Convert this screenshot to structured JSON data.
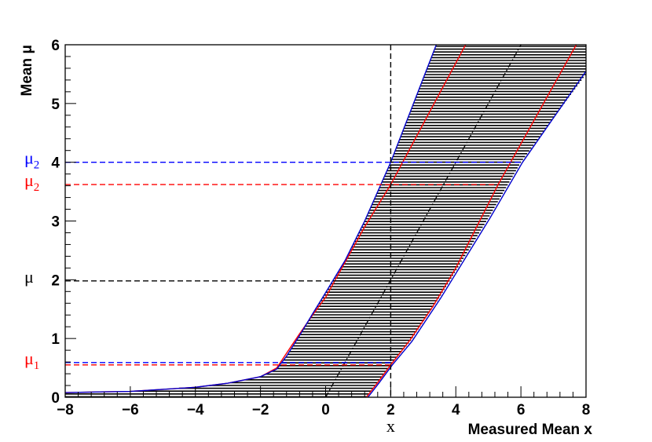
{
  "chart_data": {
    "type": "line",
    "title": "",
    "xlabel": "Measured Mean x",
    "ylabel": "Mean μ",
    "xlim": [
      -8,
      8
    ],
    "ylim": [
      0,
      6
    ],
    "x_ticks": [
      "−8",
      "−6",
      "−4",
      "−2",
      "0",
      "2",
      "4",
      "6",
      "8"
    ],
    "y_ticks": [
      "0",
      "1",
      "2",
      "3",
      "4",
      "5",
      "6"
    ],
    "grid": false,
    "legend": "none",
    "band": {
      "fill_pattern": "horizontal-lines",
      "upper_edge": [
        [
          -8,
          0.08
        ],
        [
          -6,
          0.1
        ],
        [
          -4,
          0.17
        ],
        [
          -3,
          0.24
        ],
        [
          -2,
          0.35
        ],
        [
          -1.5,
          0.48
        ],
        [
          -1.2,
          0.7
        ],
        [
          -0.8,
          1.05
        ],
        [
          -0.4,
          1.42
        ],
        [
          0,
          1.78
        ],
        [
          0.6,
          2.33
        ],
        [
          1.2,
          3.0
        ],
        [
          2.0,
          4.0
        ],
        [
          3.4,
          6.0
        ]
      ],
      "lower_edge": [
        [
          1.25,
          0
        ],
        [
          1.6,
          0.25
        ],
        [
          2.0,
          0.55
        ],
        [
          2.6,
          0.95
        ],
        [
          3.5,
          1.7
        ],
        [
          5,
          3.05
        ],
        [
          6,
          4.0
        ],
        [
          8,
          5.5
        ]
      ]
    },
    "series": [
      {
        "role": "central",
        "color": "#000000",
        "dash": "dash-dot",
        "values": [
          [
            0,
            0
          ],
          [
            6,
            6
          ]
        ]
      },
      {
        "role": "inner-upper",
        "color": "#ff0000",
        "dash": "solid",
        "values": [
          [
            -8,
            0.08
          ],
          [
            -6,
            0.1
          ],
          [
            -4,
            0.17
          ],
          [
            -3,
            0.24
          ],
          [
            -2,
            0.35
          ],
          [
            -1.5,
            0.5
          ],
          [
            -1.2,
            0.75
          ],
          [
            -0.8,
            1.08
          ],
          [
            -0.4,
            1.4
          ],
          [
            0,
            1.7
          ],
          [
            0.6,
            2.3
          ],
          [
            1.2,
            2.9
          ],
          [
            2.0,
            3.62
          ],
          [
            4.3,
            6.0
          ]
        ]
      },
      {
        "role": "inner-lower",
        "color": "#ff0000",
        "dash": "solid",
        "values": [
          [
            1.25,
            0
          ],
          [
            1.6,
            0.25
          ],
          [
            2.0,
            0.55
          ],
          [
            2.6,
            0.98
          ],
          [
            3.3,
            1.55
          ],
          [
            4.0,
            2.2
          ],
          [
            5.3,
            3.62
          ],
          [
            7.7,
            6.0
          ]
        ]
      },
      {
        "role": "outer-upper",
        "color": "#0000cc",
        "dash": "solid",
        "values": [
          [
            -8,
            0.08
          ],
          [
            -6,
            0.1
          ],
          [
            -4,
            0.17
          ],
          [
            -3,
            0.24
          ],
          [
            -2,
            0.35
          ],
          [
            -1.5,
            0.48
          ],
          [
            -1.2,
            0.7
          ],
          [
            -0.8,
            1.05
          ],
          [
            -0.4,
            1.42
          ],
          [
            0,
            1.78
          ],
          [
            0.6,
            2.33
          ],
          [
            1.2,
            3.0
          ],
          [
            2.0,
            4.0
          ],
          [
            3.4,
            6.0
          ]
        ]
      },
      {
        "role": "outer-lower",
        "color": "#0000cc",
        "dash": "solid",
        "values": [
          [
            1.3,
            0
          ],
          [
            1.65,
            0.25
          ],
          [
            2.05,
            0.55
          ],
          [
            2.65,
            0.95
          ],
          [
            3.55,
            1.7
          ],
          [
            5.05,
            3.05
          ],
          [
            6.05,
            4.0
          ],
          [
            8,
            5.55
          ]
        ]
      }
    ],
    "reference_lines": [
      {
        "kind": "vertical",
        "x": 2.0,
        "color": "#000000",
        "dash": "dashed"
      },
      {
        "kind": "horizontal",
        "y": 4.0,
        "x_to": 6.0,
        "color": "#0000ff",
        "dash": "dashed"
      },
      {
        "kind": "horizontal",
        "y": 3.62,
        "x_to": 5.3,
        "color": "#ff0000",
        "dash": "dashed"
      },
      {
        "kind": "horizontal",
        "y": 1.98,
        "x_to": 2.0,
        "color": "#000000",
        "dash": "dashed"
      },
      {
        "kind": "horizontal",
        "y": 0.59,
        "x_to": 2.0,
        "color": "#0000ff",
        "dash": "dashed"
      },
      {
        "kind": "horizontal",
        "y": 0.55,
        "x_to": 2.0,
        "color": "#ff0000",
        "dash": "dashed"
      }
    ],
    "annotations": [
      {
        "text": "μ",
        "sub": "2",
        "y": 4.0,
        "color": "#0000ff"
      },
      {
        "text": "μ",
        "sub": "2",
        "y": 3.62,
        "color": "#ff0000"
      },
      {
        "text": "μ",
        "sub": "",
        "y": 1.98,
        "color": "#000000"
      },
      {
        "text": "μ",
        "sub": "1",
        "y": 0.59,
        "color": "#ff0000"
      }
    ],
    "x_marker": {
      "text": "x",
      "x": 2.0
    }
  }
}
